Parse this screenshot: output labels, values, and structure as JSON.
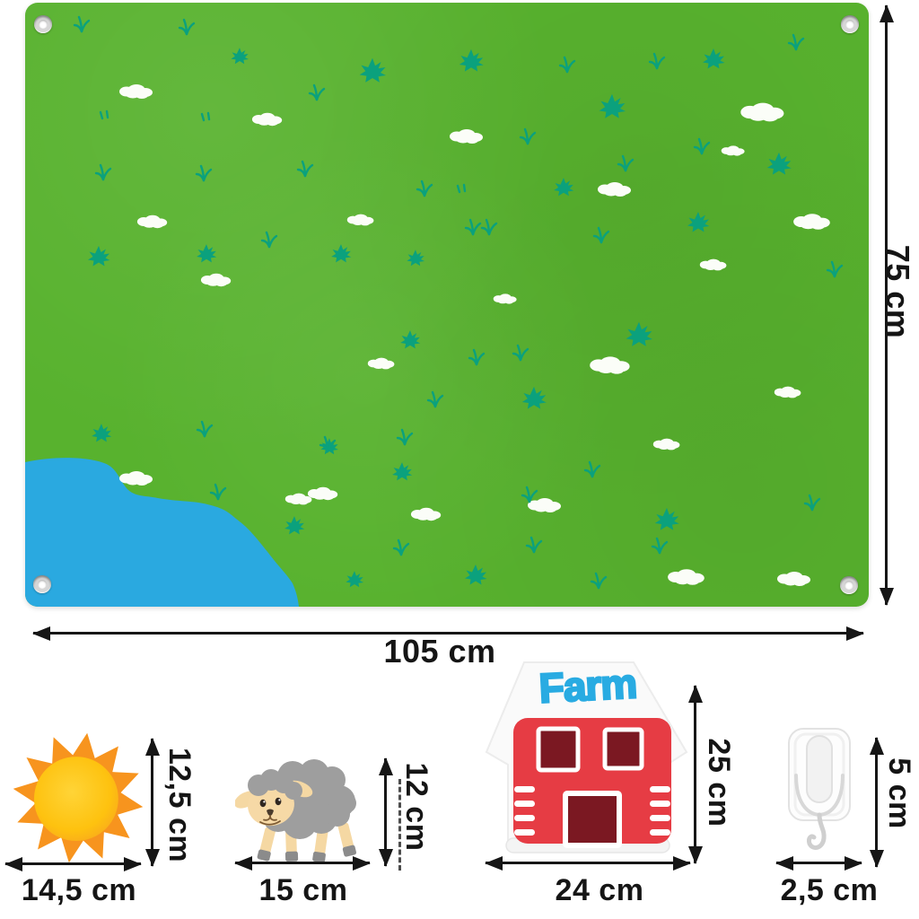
{
  "mat": {
    "width": "105 cm",
    "height": "75 cm"
  },
  "items": {
    "sun": {
      "height": "12,5 cm",
      "width": "14,5 cm"
    },
    "sheep": {
      "height": "12 cm",
      "width": "15 cm"
    },
    "farmhouse": {
      "height": "25 cm",
      "width": "24 cm",
      "sign": "Farm"
    },
    "hook": {
      "height": "5 cm",
      "width": "2,5 cm"
    }
  },
  "colors": {
    "mat_green": "#58b22e",
    "grass_teal": "#0ba17d",
    "pond_blue": "#2aa9e0",
    "cloud_white": "#fbfdf8",
    "sun_orange": "#f7941e",
    "sun_yellow": "#fec20f",
    "sheep_gray": "#9e9e9e",
    "sheep_cream": "#f5d8a3",
    "barn_red": "#e63c44",
    "barn_maroon": "#7b1822",
    "sign_blue": "#29abe2",
    "dimension_black": "#161616"
  }
}
